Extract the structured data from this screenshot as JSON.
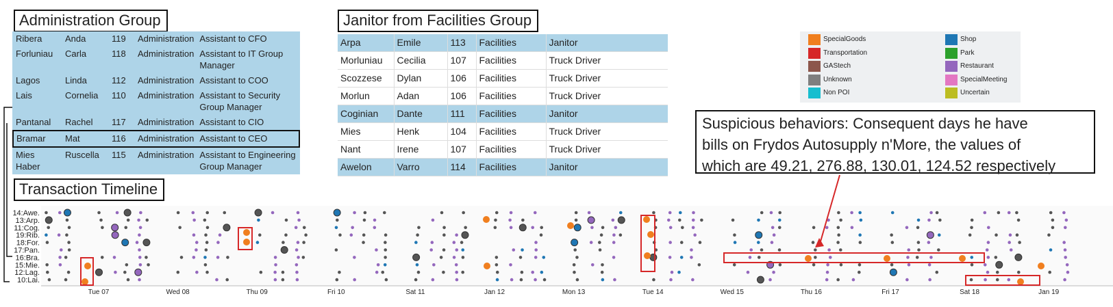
{
  "admin_group": {
    "title": "Administration Group",
    "rows": [
      {
        "last": "Ribera",
        "first": "Anda",
        "id": "119",
        "dept": "Administration",
        "title": "Assistant to CFO"
      },
      {
        "last": "Forluniau",
        "first": "Carla",
        "id": "118",
        "dept": "Administration",
        "title": "Assistant to IT Group Manager"
      },
      {
        "last": "Lagos",
        "first": "Linda",
        "id": "112",
        "dept": "Administration",
        "title": "Assistant to COO"
      },
      {
        "last": "Lais",
        "first": "Cornelia",
        "id": "110",
        "dept": "Administration",
        "title": "Assistant to Security Group Manager"
      },
      {
        "last": "Pantanal",
        "first": "Rachel",
        "id": "117",
        "dept": "Administration",
        "title": "Assistant to CIO"
      },
      {
        "last": "Bramar",
        "first": "Mat",
        "id": "116",
        "dept": "Administration",
        "title": "Assistant to CEO"
      },
      {
        "last": "Mies Haber",
        "first": "Ruscella",
        "id": "115",
        "dept": "Administration",
        "title": "Assistant to Engineering Group Manager"
      }
    ]
  },
  "janitor_group": {
    "title": "Janitor from Facilities Group",
    "rows": [
      {
        "last": "Arpa",
        "first": "Emile",
        "id": "113",
        "dept": "Facilities",
        "title": "Janitor"
      },
      {
        "last": "Morluniau",
        "first": "Cecilia",
        "id": "107",
        "dept": "Facilities",
        "title": "Truck Driver"
      },
      {
        "last": "Scozzese",
        "first": "Dylan",
        "id": "106",
        "dept": "Facilities",
        "title": "Truck Driver"
      },
      {
        "last": "Morlun",
        "first": "Adan",
        "id": "106",
        "dept": "Facilities",
        "title": "Truck Driver"
      },
      {
        "last": "Coginian",
        "first": "Dante",
        "id": "111",
        "dept": "Facilities",
        "title": "Janitor"
      },
      {
        "last": "Mies",
        "first": "Henk",
        "id": "104",
        "dept": "Facilities",
        "title": "Truck Driver"
      },
      {
        "last": "Nant",
        "first": "Irene",
        "id": "107",
        "dept": "Facilities",
        "title": "Truck Driver"
      },
      {
        "last": "Awelon",
        "first": "Varro",
        "id": "114",
        "dept": "Facilities",
        "title": "Janitor"
      }
    ]
  },
  "legend": {
    "items": [
      {
        "label": "SpecialGoods",
        "color": "#f07f1f"
      },
      {
        "label": "Shop",
        "color": "#1f77b4"
      },
      {
        "label": "Transportation",
        "color": "#d62728"
      },
      {
        "label": "Park",
        "color": "#2ca02c"
      },
      {
        "label": "GAStech",
        "color": "#8c564b"
      },
      {
        "label": "Restaurant",
        "color": "#9467bd"
      },
      {
        "label": "Unknown",
        "color": "#7f7f7f"
      },
      {
        "label": "SpecialMeeting",
        "color": "#e377c2"
      },
      {
        "label": "Non POI",
        "color": "#17becf"
      },
      {
        "label": "Uncertain",
        "color": "#bcbd22"
      }
    ]
  },
  "annotation": {
    "lines": [
      "Suspicious behaviors: Consequent days he have",
      "bills on Frydos Autosupply n'More, the values of",
      "which are 49.21, 276.88, 130.01, 124.52 respectively"
    ]
  },
  "timeline": {
    "title": "Transaction Timeline",
    "rows": [
      "14:Awe.",
      "13:Arp.",
      "11:Cog.",
      "19:Rib.",
      "18:For.",
      "17:Pan.",
      "16:Bra.",
      "15:Mie.",
      "12:Lag.",
      "10:Lai."
    ],
    "dates": [
      "Tue 07",
      "Wed 08",
      "Thu 09",
      "Fri 10",
      "Sat 11",
      "Jan 12",
      "Mon 13",
      "Tue 14",
      "Wed 15",
      "Thu 16",
      "Fri 17",
      "Sat 18",
      "Jan 19"
    ],
    "highlighted_row": "16:Bra.",
    "bills_values": [
      49.21,
      276.88,
      130.01,
      124.52
    ]
  },
  "colors": {
    "table_bg": "#aed4e8",
    "highlight_box": "#d62728",
    "dot_default": "#555555",
    "dot_restaurant": "#9467bd"
  }
}
